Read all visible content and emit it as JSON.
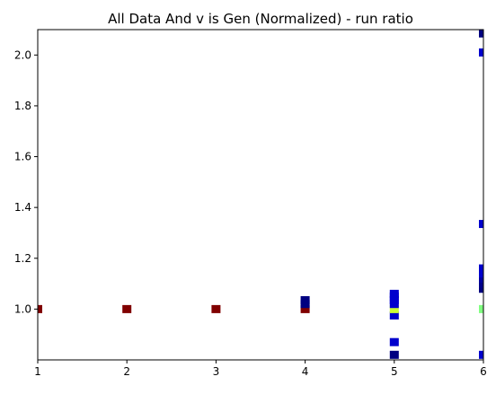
{
  "chart_data": {
    "type": "heatmap",
    "title": "All Data And v is Gen (Normalized) - run ratio",
    "xlabel": "",
    "ylabel": "",
    "xlim": [
      1,
      6
    ],
    "ylim": [
      0.8,
      2.1
    ],
    "x_ticks": [
      "1",
      "2",
      "3",
      "4",
      "5",
      "6"
    ],
    "y_ticks": [
      "1.0",
      "1.2",
      "1.4",
      "1.6",
      "1.8",
      "2.0"
    ],
    "colormap": "jet",
    "grid": false,
    "cells": [
      {
        "x": 1.0,
        "y": 1.0,
        "color": "#800000"
      },
      {
        "x": 2.0,
        "y": 1.0,
        "color": "#800000"
      },
      {
        "x": 3.0,
        "y": 1.0,
        "color": "#800000"
      },
      {
        "x": 4.0,
        "y": 1.0,
        "color": "#800000"
      },
      {
        "x": 4.0,
        "y": 1.02,
        "color": "#000080"
      },
      {
        "x": 4.0,
        "y": 1.035,
        "color": "#000080"
      },
      {
        "x": 5.0,
        "y": 0.82,
        "color": "#000080"
      },
      {
        "x": 5.0,
        "y": 0.87,
        "color": "#0000cd"
      },
      {
        "x": 5.0,
        "y": 0.975,
        "color": "#0000cd"
      },
      {
        "x": 5.0,
        "y": 1.0,
        "color": "#ccff33"
      },
      {
        "x": 5.0,
        "y": 1.02,
        "color": "#0000cd"
      },
      {
        "x": 5.0,
        "y": 1.035,
        "color": "#0000cd"
      },
      {
        "x": 5.0,
        "y": 1.05,
        "color": "#0000cd"
      },
      {
        "x": 5.0,
        "y": 1.06,
        "color": "#0000cd"
      },
      {
        "x": 6.0,
        "y": 0.82,
        "color": "#0000cd"
      },
      {
        "x": 6.0,
        "y": 1.0,
        "color": "#80ff80"
      },
      {
        "x": 6.0,
        "y": 1.08,
        "color": "#000080"
      },
      {
        "x": 6.0,
        "y": 1.1,
        "color": "#00008b"
      },
      {
        "x": 6.0,
        "y": 1.12,
        "color": "#0000a0"
      },
      {
        "x": 6.0,
        "y": 1.14,
        "color": "#0000cd"
      },
      {
        "x": 6.0,
        "y": 1.16,
        "color": "#0000cd"
      },
      {
        "x": 6.0,
        "y": 1.335,
        "color": "#0000cd"
      },
      {
        "x": 6.0,
        "y": 2.01,
        "color": "#0000cd"
      },
      {
        "x": 6.0,
        "y": 2.085,
        "color": "#000080"
      }
    ]
  }
}
